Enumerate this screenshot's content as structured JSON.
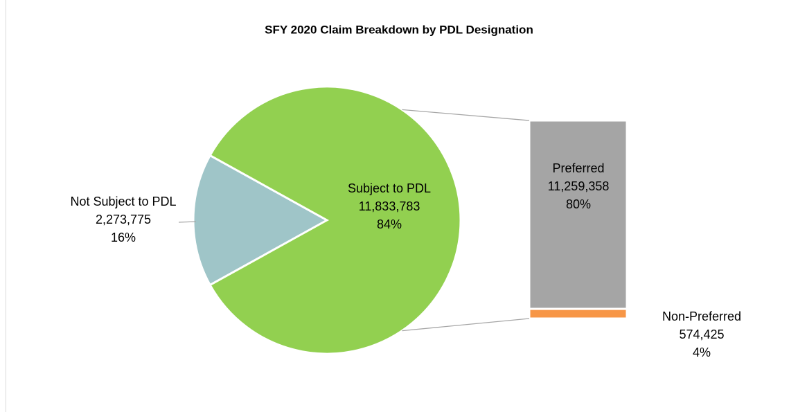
{
  "chart_data": {
    "type": "pie",
    "title": "SFY 2020 Claim Breakdown by PDL Designation",
    "categories": [
      "Not Subject to PDL",
      "Subject to PDL"
    ],
    "values": [
      2273775,
      11833783
    ],
    "value_labels": [
      "2,273,775",
      "11,833,783"
    ],
    "percents": [
      16,
      84
    ],
    "percent_labels": [
      "16%",
      "84%"
    ],
    "colors": [
      "#9fc5c8",
      "#92d050"
    ],
    "breakdown": {
      "categories": [
        "Preferred",
        "Non-Preferred"
      ],
      "values": [
        11259358,
        574425
      ],
      "value_labels": [
        "11,259,358",
        "574,425"
      ],
      "percents": [
        80,
        4
      ],
      "percent_labels": [
        "80%",
        "4%"
      ],
      "colors": [
        "#a5a5a5",
        "#f79646"
      ]
    }
  }
}
